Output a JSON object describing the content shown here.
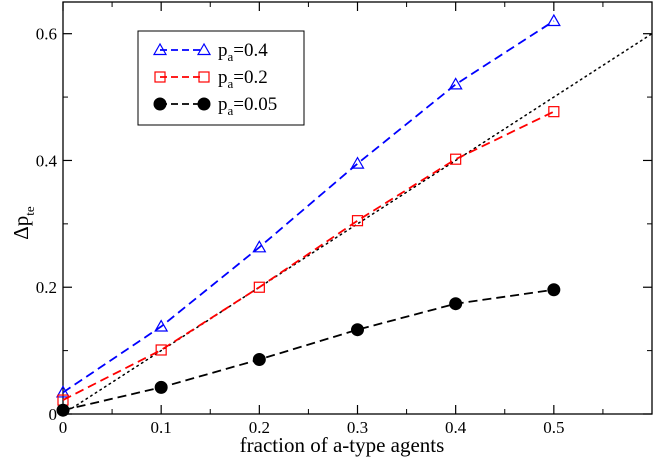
{
  "chart_data": {
    "type": "line",
    "title": "",
    "xlabel": "fraction of a-type agents",
    "ylabel_main": "Δp",
    "ylabel_sub": "te",
    "xlim": [
      0,
      0.6
    ],
    "ylim": [
      0,
      0.65
    ],
    "xticks": [
      0,
      0.1,
      0.2,
      0.3,
      0.4,
      0.5
    ],
    "xtick_labels": [
      "0",
      "0.1",
      "0.2",
      "0.3",
      "0.4",
      "0.5"
    ],
    "yticks": [
      0,
      0.2,
      0.4,
      0.6
    ],
    "ytick_labels": [
      "0",
      "0.2",
      "0.4",
      "0.6"
    ],
    "grid": false,
    "legend_position": "top-left",
    "reference_line": {
      "style": "dotted",
      "color": "#000000",
      "x": [
        0,
        0.6
      ],
      "y": [
        0,
        0.6
      ]
    },
    "series": [
      {
        "name": "p_a=0.4",
        "label_main": "p",
        "label_sub": "a",
        "label_rest": "=0.4",
        "color": "#0000ff",
        "marker": "triangle",
        "x": [
          0,
          0.1,
          0.2,
          0.3,
          0.4,
          0.5
        ],
        "values": [
          0.034,
          0.138,
          0.263,
          0.395,
          0.52,
          0.62
        ]
      },
      {
        "name": "p_a=0.2",
        "label_main": "p",
        "label_sub": "a",
        "label_rest": "=0.2",
        "color": "#ff0000",
        "marker": "square",
        "x": [
          0,
          0.1,
          0.2,
          0.3,
          0.4,
          0.5
        ],
        "values": [
          0.022,
          0.101,
          0.2,
          0.305,
          0.402,
          0.477
        ]
      },
      {
        "name": "p_a=0.05",
        "label_main": "p",
        "label_sub": "a",
        "label_rest": "=0.05",
        "color": "#000000",
        "marker": "circle",
        "x": [
          0,
          0.1,
          0.2,
          0.3,
          0.4,
          0.5
        ],
        "values": [
          0.006,
          0.042,
          0.086,
          0.133,
          0.174,
          0.196
        ]
      }
    ]
  }
}
